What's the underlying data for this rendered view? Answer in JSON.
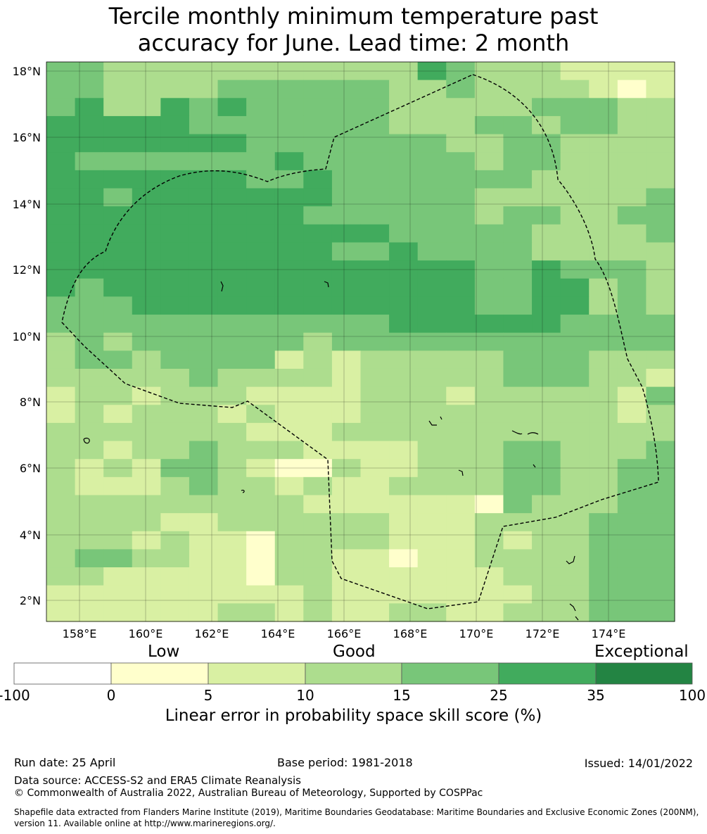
{
  "title_line1": "Tercile monthly minimum temperature past",
  "title_line2": "accuracy for June. Lead time: 2 month",
  "map": {
    "lat_labels": [
      "18°N",
      "16°N",
      "14°N",
      "12°N",
      "10°N",
      "8°N",
      "6°N",
      "4°N",
      "2°N"
    ],
    "lon_labels": [
      "158°E",
      "160°E",
      "162°E",
      "164°E",
      "166°E",
      "168°E",
      "170°E",
      "172°E",
      "174°E"
    ],
    "grid_rows": [
      "4433333333333543332222",
      "4433334444443343333212",
      "4533545444443333344433",
      "5555544444443334434433",
      "5555555444444433443333",
      "5444444454444443443333",
      "5555555445444444433333",
      "5545555555444443333334",
      "5555555554444443443344",
      "5555555555554444433334",
      "5555555555445444433333",
      "5555555555555554454443",
      "5455555555555554455343",
      "4445555555555554455343",
      "4444444444445555554444",
      "3434444443444444444444",
      "3443444423233333444333",
      "3333343333233333444332",
      "2332333222233323333324",
      "2323332322233333333323",
      "3333333222333333333333",
      "3323343332222333443334",
      "3232443211322333443344",
      "3222343323223333443344",
      "3333333332222221433344",
      "3333223333332223333444",
      "3332322133332223233444",
      "3443322133221223333444",
      "3322222133222222333444",
      "2222222223222222233444",
      "2222223323223322333444"
    ]
  },
  "colorbar": {
    "category_labels": [
      "Low",
      "Good",
      "Exceptional"
    ],
    "ticks": [
      "-100",
      "0",
      "5",
      "10",
      "15",
      "25",
      "35",
      "100"
    ],
    "colors": [
      "#ffffff",
      "#ffffcc",
      "#d9f0a3",
      "#addd8e",
      "#78c679",
      "#41ab5d",
      "#238443"
    ],
    "title": "Linear error in probability space skill score (%)"
  },
  "footer": {
    "run_date": "Run date: 25 April",
    "base_period": "Base period: 1981-2018",
    "issued": "Issued: 14/01/2022",
    "data_source": "Data source: ACCESS-S2 and ERA5 Climate Reanalysis",
    "copyright": "© Commonwealth of Australia 2022, Australian Bureau of Meteorology, Supported by COSPPac",
    "shapefile_line1": "Shapefile data extracted from Flanders Marine Institute (2019), Maritime Boundaries Geodatabase: Maritime Boundaries and Exclusive Economic Zones (200NM),",
    "shapefile_line2": "version 11. Available online at http://www.marineregions.org/."
  }
}
